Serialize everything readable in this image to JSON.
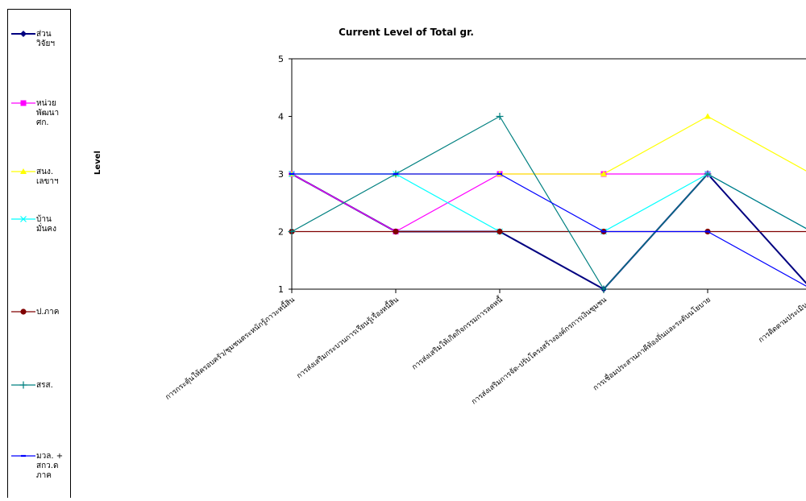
{
  "chart_data": {
    "type": "line",
    "title": "Current Level of Total gr.",
    "ylabel": "Level",
    "xlabel": "",
    "ylim": [
      1,
      5
    ],
    "yticks": [
      1,
      2,
      3,
      4,
      5
    ],
    "grid": false,
    "legend_position": "left",
    "categories": [
      "การกระตุ้นให้ครอบครัว/ชุมชนตระหนักรู้ภาวะหนี้สิน",
      "การส่งเสริมกระบวนการเรียนรู้เรื่องหนี้สิน",
      "การส่งเสริมให้เกิดกิจกรรมการลดหนี้",
      "การส่งเสริมการจัด-ปรับโครงสร้างองค์กรการเงินชุมชน",
      "การเชื่อมประสานภาคีท้องถิ่นและระดับนโยบาย",
      "การติดตามประเมินผล"
    ],
    "series": [
      {
        "name": "ส่วน\nวิจัยฯ",
        "color": "#000080",
        "marker": "diamond",
        "values": [
          3,
          2,
          2,
          1,
          3,
          1
        ]
      },
      {
        "name": "หน่วย\nพัฒนา\nศก.",
        "color": "#FF00FF",
        "marker": "square",
        "values": [
          3,
          2,
          3,
          3,
          3,
          2
        ]
      },
      {
        "name": "สนง.\nเลขาฯ",
        "color": "#FFFF00",
        "marker": "triangle",
        "values": [
          3,
          3,
          3,
          3,
          4,
          3
        ]
      },
      {
        "name": "บ้าน\nมั่นคง",
        "color": "#00FFFF",
        "marker": "x",
        "values": [
          3,
          3,
          2,
          2,
          3,
          2
        ]
      },
      {
        "name": "ป.ภาค",
        "color": "#800000",
        "marker": "circle",
        "values": [
          2,
          2,
          2,
          2,
          2,
          2
        ]
      },
      {
        "name": "สรส.",
        "color": "#008080",
        "marker": "plus",
        "values": [
          2,
          3,
          4,
          1,
          3,
          2
        ]
      },
      {
        "name": "มวล. +\nสกว.ด\nภาค",
        "color": "#0000FF",
        "marker": "dash",
        "values": [
          3,
          3,
          3,
          2,
          2,
          1
        ]
      }
    ]
  }
}
